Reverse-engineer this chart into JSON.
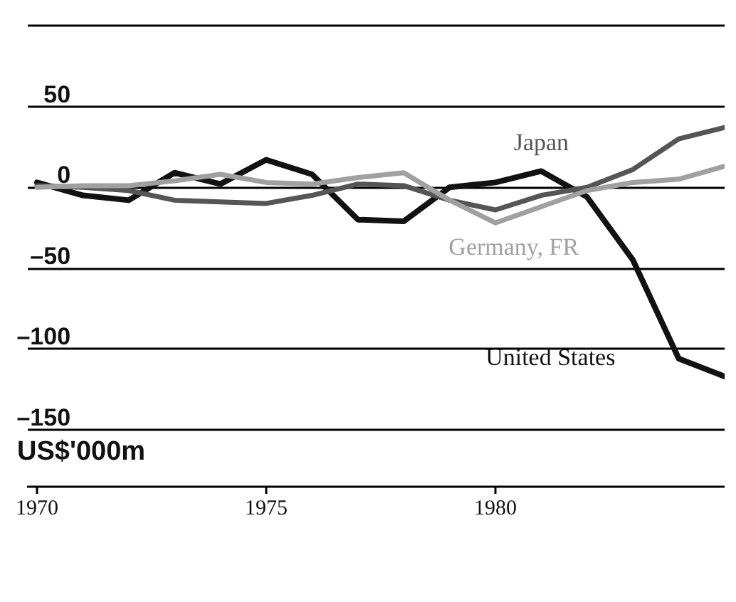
{
  "chart_data": {
    "type": "line",
    "annotations": [
      "US$'000m"
    ],
    "x": [
      1970,
      1971,
      1972,
      1973,
      1974,
      1975,
      1976,
      1977,
      1978,
      1979,
      1980,
      1981,
      1982,
      1983,
      1984,
      1985
    ],
    "series": [
      {
        "name": "United States",
        "color": "#111111",
        "values": [
          3,
          -5,
          -8,
          9,
          2,
          17,
          8,
          -20,
          -21,
          0,
          3,
          10,
          -6,
          -45,
          -106,
          -117
        ]
      },
      {
        "name": "Japan",
        "color": "#555555",
        "values": [
          1,
          0,
          -2,
          -8,
          -9,
          -10,
          -5,
          2,
          1,
          -8,
          -14,
          -5,
          0,
          11,
          30,
          37
        ]
      },
      {
        "name": "Germany, FR",
        "color": "#a0a0a0",
        "values": [
          0,
          1,
          1,
          4,
          8,
          3,
          2,
          6,
          9,
          -8,
          -22,
          -12,
          -2,
          3,
          5,
          13
        ]
      }
    ],
    "xlim": [
      1969.8,
      1985
    ],
    "xticks": [
      1970,
      1975,
      1980
    ],
    "ylim": [
      -150,
      100
    ],
    "yticks": [
      {
        "value": 100,
        "label": null
      },
      50,
      0,
      {
        "value": -50,
        "label": "–50"
      },
      {
        "value": -100,
        "label": "–100"
      },
      {
        "value": -150,
        "label": "–150"
      }
    ],
    "grid": "y",
    "legend": false,
    "marker": "none",
    "line_style": "solid"
  }
}
